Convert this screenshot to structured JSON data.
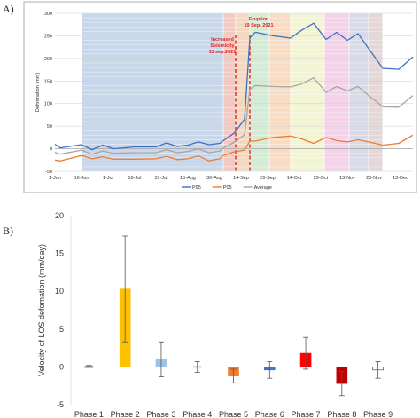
{
  "chart_data": [
    {
      "panel_label": "A)",
      "type": "line",
      "title": "",
      "xlabel": "",
      "ylabel": "Deformation (mm)",
      "ylim": [
        -50,
        300
      ],
      "yticks": [
        -50,
        0,
        50,
        100,
        150,
        200,
        250,
        300
      ],
      "x_tick_labels": [
        "1-Jun",
        "16-Jun",
        "1-Jul",
        "16-Jul",
        "31-Jul",
        "15-Aug",
        "30-Aug",
        "14-Sep",
        "29-Sep",
        "14-Oct",
        "29-Oct",
        "13-Nov",
        "28-Nov",
        "13-Dec"
      ],
      "x_start": "2021-06-01",
      "x_end": "2021-12-20",
      "grid": "horizontal",
      "legend_position": "bottom",
      "phases": [
        {
          "start": "2021-06-16",
          "end": "2021-09-04",
          "color": "#c9d7ea"
        },
        {
          "start": "2021-09-04",
          "end": "2021-09-11",
          "color": "#f3c9c4"
        },
        {
          "start": "2021-09-11",
          "end": "2021-09-19",
          "color": "#f4d9c2"
        },
        {
          "start": "2021-09-19",
          "end": "2021-09-30",
          "color": "#d4ebd6"
        },
        {
          "start": "2021-09-30",
          "end": "2021-10-12",
          "color": "#f8dcc3"
        },
        {
          "start": "2021-10-12",
          "end": "2021-10-31",
          "color": "#f2f5d4"
        },
        {
          "start": "2021-10-31",
          "end": "2021-11-14",
          "color": "#f4d3ea"
        },
        {
          "start": "2021-11-14",
          "end": "2021-11-25",
          "color": "#d9dbe8"
        },
        {
          "start": "2021-11-25",
          "end": "2021-12-03",
          "color": "#e4d7d7"
        },
        {
          "start": "2021-12-03",
          "end": "2021-12-20",
          "color": "#ffffff"
        }
      ],
      "annotations": [
        {
          "lines": [
            "Increased",
            "Seismicity",
            "11 sep.2021"
          ],
          "date": "2021-09-11"
        },
        {
          "lines": [
            "Eruption",
            "19 Sep. 2021"
          ],
          "date": "2021-09-19"
        }
      ],
      "series": [
        {
          "name": "P95",
          "color": "#3f6fc6",
          "points": [
            [
              "2021-06-01",
              10
            ],
            [
              "2021-06-04",
              2
            ],
            [
              "2021-06-16",
              9
            ],
            [
              "2021-06-22",
              -2
            ],
            [
              "2021-06-28",
              8
            ],
            [
              "2021-07-04",
              0
            ],
            [
              "2021-07-16",
              4
            ],
            [
              "2021-07-28",
              4
            ],
            [
              "2021-08-03",
              13
            ],
            [
              "2021-08-09",
              5
            ],
            [
              "2021-08-15",
              8
            ],
            [
              "2021-08-21",
              15
            ],
            [
              "2021-08-27",
              9
            ],
            [
              "2021-09-02",
              12
            ],
            [
              "2021-09-04",
              18
            ],
            [
              "2021-09-10",
              34
            ],
            [
              "2021-09-16",
              65
            ],
            [
              "2021-09-19",
              245
            ],
            [
              "2021-09-22",
              258
            ],
            [
              "2021-10-02",
              250
            ],
            [
              "2021-10-12",
              245
            ],
            [
              "2021-10-18",
              262
            ],
            [
              "2021-10-25",
              278
            ],
            [
              "2021-11-01",
              242
            ],
            [
              "2021-11-07",
              258
            ],
            [
              "2021-11-13",
              240
            ],
            [
              "2021-11-19",
              255
            ],
            [
              "2021-11-25",
              222
            ],
            [
              "2021-12-03",
              178
            ],
            [
              "2021-12-12",
              176
            ],
            [
              "2021-12-20",
              203
            ]
          ]
        },
        {
          "name": "P05",
          "color": "#ec7d31",
          "points": [
            [
              "2021-06-01",
              -25
            ],
            [
              "2021-06-04",
              -27
            ],
            [
              "2021-06-16",
              -15
            ],
            [
              "2021-06-22",
              -22
            ],
            [
              "2021-06-28",
              -18
            ],
            [
              "2021-07-04",
              -23
            ],
            [
              "2021-07-16",
              -23
            ],
            [
              "2021-07-28",
              -22
            ],
            [
              "2021-08-03",
              -17
            ],
            [
              "2021-08-09",
              -24
            ],
            [
              "2021-08-15",
              -22
            ],
            [
              "2021-08-21",
              -16
            ],
            [
              "2021-08-27",
              -27
            ],
            [
              "2021-09-02",
              -22
            ],
            [
              "2021-09-04",
              -15
            ],
            [
              "2021-09-10",
              -7
            ],
            [
              "2021-09-16",
              -3
            ],
            [
              "2021-09-19",
              17
            ],
            [
              "2021-09-22",
              17
            ],
            [
              "2021-10-02",
              25
            ],
            [
              "2021-10-12",
              28
            ],
            [
              "2021-10-18",
              22
            ],
            [
              "2021-10-25",
              12
            ],
            [
              "2021-11-01",
              25
            ],
            [
              "2021-11-07",
              18
            ],
            [
              "2021-11-13",
              15
            ],
            [
              "2021-11-19",
              20
            ],
            [
              "2021-11-25",
              15
            ],
            [
              "2021-12-03",
              8
            ],
            [
              "2021-12-12",
              12
            ],
            [
              "2021-12-20",
              30
            ]
          ]
        },
        {
          "name": "Average",
          "color": "#a5a5a5",
          "points": [
            [
              "2021-06-01",
              -8
            ],
            [
              "2021-06-04",
              -12
            ],
            [
              "2021-06-16",
              -3
            ],
            [
              "2021-06-22",
              -12
            ],
            [
              "2021-06-28",
              -5
            ],
            [
              "2021-07-04",
              -10
            ],
            [
              "2021-07-16",
              -9
            ],
            [
              "2021-07-28",
              -9
            ],
            [
              "2021-08-03",
              -2
            ],
            [
              "2021-08-09",
              -9
            ],
            [
              "2021-08-15",
              -6
            ],
            [
              "2021-08-21",
              0
            ],
            [
              "2021-08-27",
              -9
            ],
            [
              "2021-09-02",
              -5
            ],
            [
              "2021-09-04",
              2
            ],
            [
              "2021-09-10",
              14
            ],
            [
              "2021-09-16",
              31
            ],
            [
              "2021-09-19",
              132
            ],
            [
              "2021-09-22",
              140
            ],
            [
              "2021-10-02",
              138
            ],
            [
              "2021-10-12",
              137
            ],
            [
              "2021-10-18",
              143
            ],
            [
              "2021-10-25",
              157
            ],
            [
              "2021-11-01",
              125
            ],
            [
              "2021-11-07",
              138
            ],
            [
              "2021-11-13",
              128
            ],
            [
              "2021-11-19",
              138
            ],
            [
              "2021-11-25",
              118
            ],
            [
              "2021-12-03",
              93
            ],
            [
              "2021-12-12",
              92
            ],
            [
              "2021-12-20",
              118
            ]
          ]
        }
      ]
    },
    {
      "panel_label": "B)",
      "type": "bar",
      "title": "",
      "xlabel": "",
      "ylabel": "Velocity of LOS defomation (mm/day)",
      "ylim": [
        -5,
        20
      ],
      "yticks": [
        -5,
        0,
        5,
        10,
        15,
        20
      ],
      "categories": [
        "Phase 1",
        "Phase 2",
        "Phase 3",
        "Phase 4",
        "Phase 5",
        "Phase 6",
        "Phase 7",
        "Phase 8",
        "Phase 9"
      ],
      "values": [
        0.1,
        10.3,
        1.0,
        0.0,
        -1.2,
        -0.4,
        1.8,
        -2.2,
        -0.4
      ],
      "errors": [
        0.1,
        7.0,
        2.3,
        0.7,
        0.9,
        1.1,
        2.1,
        1.6,
        1.1
      ],
      "colors": [
        "#333333",
        "#ffc000",
        "#9dc3e6",
        "#bfbfbf",
        "#ed7d31",
        "#4472c4",
        "#ff0000",
        "#c00000",
        "#ffffff"
      ],
      "grid": false
    }
  ]
}
